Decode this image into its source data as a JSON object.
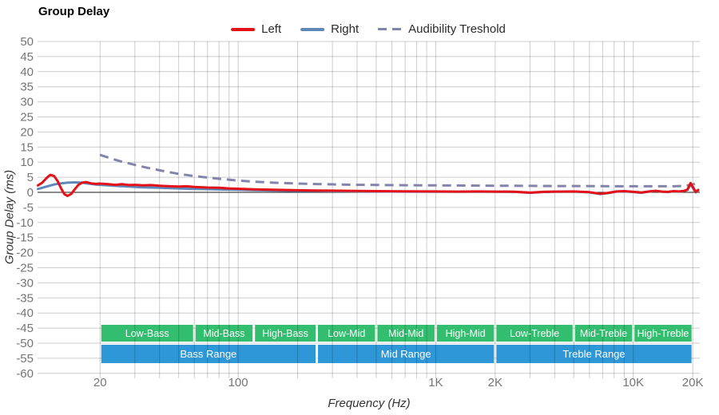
{
  "title": "Group Delay",
  "colors": {
    "left": "#e31219",
    "right": "#5f88ba",
    "threshold": "#8284ab",
    "grid": "#cccccc",
    "zero_line": "#1a1a1a",
    "tick_text": "#757575",
    "band_green": "#33bd6e",
    "band_blue": "#2e97d8",
    "band_text": "#ffffff"
  },
  "legend": [
    {
      "label": "Left",
      "color": "#e31219",
      "style": "solid"
    },
    {
      "label": "Right",
      "color": "#5f88ba",
      "style": "solid"
    },
    {
      "label": "Audibility Treshold",
      "color": "#8284ab",
      "style": "dashed"
    }
  ],
  "axes": {
    "y_label": "Group Delay (ms)",
    "x_label": "Frequency (Hz)",
    "y_ticks": [
      50,
      45,
      40,
      35,
      30,
      25,
      20,
      15,
      10,
      5,
      0,
      -5,
      -10,
      -15,
      -20,
      -25,
      -30,
      -35,
      -40,
      -45,
      -50,
      -55,
      -60
    ],
    "x_ticks": [
      {
        "f": 20,
        "label": "20"
      },
      {
        "f": 100,
        "label": "100"
      },
      {
        "f": 1000,
        "label": "1K"
      },
      {
        "f": 2000,
        "label": "2K"
      },
      {
        "f": 10000,
        "label": "10K"
      },
      {
        "f": 20000,
        "label": "20K"
      }
    ],
    "y_range": [
      -60,
      50
    ],
    "x_range_hz": [
      9.7,
      21700
    ]
  },
  "bands": {
    "sub": [
      {
        "label": "Low-Bass",
        "from": 20,
        "to": 60
      },
      {
        "label": "Mid-Bass",
        "from": 60,
        "to": 120
      },
      {
        "label": "High-Bass",
        "from": 120,
        "to": 250
      },
      {
        "label": "Low-Mid",
        "from": 250,
        "to": 500
      },
      {
        "label": "Mid-Mid",
        "from": 500,
        "to": 1000
      },
      {
        "label": "High-Mid",
        "from": 1000,
        "to": 2000
      },
      {
        "label": "Low-Treble",
        "from": 2000,
        "to": 5000
      },
      {
        "label": "Mid-Treble",
        "from": 5000,
        "to": 10000
      },
      {
        "label": "High-Treble",
        "from": 10000,
        "to": 20000
      }
    ],
    "main": [
      {
        "label": "Bass Range",
        "from": 20,
        "to": 250
      },
      {
        "label": "Mid Range",
        "from": 250,
        "to": 2000
      },
      {
        "label": "Treble Range",
        "from": 2000,
        "to": 20000
      }
    ]
  },
  "chart_data": {
    "type": "line",
    "title": "Group Delay",
    "xlabel": "Frequency (Hz)",
    "ylabel": "Group Delay (ms)",
    "x_scale": "log",
    "xlim": [
      9.7,
      21700
    ],
    "ylim": [
      -60,
      50
    ],
    "grid": true,
    "legend_position": "top-center",
    "series": [
      {
        "name": "Audibility Treshold",
        "color": "#8284ab",
        "dashed": true,
        "points": [
          [
            20,
            12.4
          ],
          [
            25,
            10.4
          ],
          [
            30,
            9.1
          ],
          [
            35,
            8.1
          ],
          [
            40,
            7.3
          ],
          [
            50,
            6.1
          ],
          [
            60,
            5.4
          ],
          [
            70,
            4.9
          ],
          [
            80,
            4.5
          ],
          [
            90,
            4.2
          ],
          [
            100,
            3.9
          ],
          [
            120,
            3.55
          ],
          [
            150,
            3.2
          ],
          [
            200,
            2.9
          ],
          [
            250,
            2.75
          ],
          [
            300,
            2.65
          ],
          [
            400,
            2.5
          ],
          [
            500,
            2.45
          ],
          [
            700,
            2.35
          ],
          [
            1000,
            2.3
          ],
          [
            1500,
            2.25
          ],
          [
            2000,
            2.2
          ],
          [
            3000,
            2.15
          ],
          [
            4000,
            2.1
          ],
          [
            5000,
            2.1
          ],
          [
            7000,
            2.05
          ],
          [
            10000,
            2.0
          ],
          [
            13000,
            2.0
          ],
          [
            16000,
            2.0
          ],
          [
            18000,
            2.1
          ],
          [
            19500,
            2.5
          ],
          [
            20500,
            2.8
          ]
        ]
      },
      {
        "name": "Right",
        "color": "#5f88ba",
        "dashed": false,
        "points": [
          [
            9.7,
            1.1
          ],
          [
            10.7,
            1.9
          ],
          [
            11.7,
            2.6
          ],
          [
            12.7,
            3.0
          ],
          [
            13.7,
            3.2
          ],
          [
            14.9,
            3.3
          ],
          [
            16.2,
            3.2
          ],
          [
            17,
            3.0
          ],
          [
            18,
            2.8
          ],
          [
            19,
            2.6
          ],
          [
            20,
            2.5
          ],
          [
            22,
            2.3
          ],
          [
            25,
            2.1
          ],
          [
            28,
            1.9
          ],
          [
            32,
            1.7
          ],
          [
            36,
            1.6
          ],
          [
            40,
            1.5
          ],
          [
            45,
            1.4
          ],
          [
            50,
            1.3
          ],
          [
            60,
            1.15
          ],
          [
            70,
            1.05
          ],
          [
            80,
            0.95
          ],
          [
            90,
            0.9
          ],
          [
            100,
            0.85
          ],
          [
            120,
            0.75
          ],
          [
            150,
            0.6
          ],
          [
            200,
            0.5
          ],
          [
            250,
            0.45
          ],
          [
            300,
            0.4
          ],
          [
            400,
            0.35
          ],
          [
            500,
            0.3
          ],
          [
            700,
            0.25
          ],
          [
            1000,
            0.2
          ],
          [
            1300,
            0.18
          ],
          [
            1600,
            0.22
          ],
          [
            2000,
            0.2
          ],
          [
            2500,
            0.15
          ],
          [
            3000,
            -0.15
          ],
          [
            3500,
            0.1
          ],
          [
            4000,
            0.2
          ],
          [
            5000,
            0.25
          ],
          [
            6000,
            0.0
          ],
          [
            6800,
            -0.55
          ],
          [
            7500,
            -0.25
          ],
          [
            8200,
            0.25
          ],
          [
            9000,
            0.35
          ],
          [
            10000,
            0.1
          ],
          [
            11000,
            -0.15
          ],
          [
            12000,
            0.25
          ],
          [
            13000,
            0.45
          ],
          [
            14000,
            0.2
          ],
          [
            15000,
            0.1
          ],
          [
            16000,
            0.35
          ],
          [
            17000,
            0.25
          ],
          [
            18000,
            0.4
          ],
          [
            18800,
            0.8
          ],
          [
            19500,
            2.7
          ],
          [
            20200,
            1.1
          ],
          [
            20700,
            0.0
          ],
          [
            21300,
            0.6
          ]
        ]
      },
      {
        "name": "Left",
        "color": "#e31219",
        "dashed": false,
        "points": [
          [
            9.7,
            2.3
          ],
          [
            10.2,
            3.2
          ],
          [
            10.7,
            4.7
          ],
          [
            11.2,
            5.8
          ],
          [
            11.7,
            5.4
          ],
          [
            12.2,
            3.7
          ],
          [
            12.7,
            1.3
          ],
          [
            13.2,
            -0.6
          ],
          [
            13.7,
            -1.2
          ],
          [
            14.3,
            -0.5
          ],
          [
            14.9,
            1.0
          ],
          [
            15.5,
            2.4
          ],
          [
            16.2,
            3.2
          ],
          [
            17,
            3.4
          ],
          [
            18,
            3.0
          ],
          [
            19,
            2.8
          ],
          [
            20,
            2.9
          ],
          [
            22,
            2.7
          ],
          [
            24,
            2.5
          ],
          [
            26,
            2.7
          ],
          [
            28,
            2.4
          ],
          [
            30,
            2.5
          ],
          [
            33,
            2.3
          ],
          [
            36,
            2.4
          ],
          [
            40,
            2.2
          ],
          [
            45,
            2.0
          ],
          [
            50,
            1.9
          ],
          [
            55,
            2.0
          ],
          [
            60,
            1.8
          ],
          [
            70,
            1.6
          ],
          [
            80,
            1.5
          ],
          [
            90,
            1.3
          ],
          [
            100,
            1.2
          ],
          [
            120,
            1.0
          ],
          [
            150,
            0.85
          ],
          [
            200,
            0.7
          ],
          [
            250,
            0.6
          ],
          [
            300,
            0.55
          ],
          [
            400,
            0.45
          ],
          [
            500,
            0.4
          ],
          [
            700,
            0.35
          ],
          [
            1000,
            0.3
          ],
          [
            1300,
            0.25
          ],
          [
            1600,
            0.3
          ],
          [
            2000,
            0.25
          ],
          [
            2500,
            0.2
          ],
          [
            3000,
            -0.1
          ],
          [
            3500,
            0.15
          ],
          [
            4000,
            0.25
          ],
          [
            5000,
            0.3
          ],
          [
            6000,
            0.05
          ],
          [
            6800,
            -0.45
          ],
          [
            7500,
            -0.15
          ],
          [
            8200,
            0.3
          ],
          [
            9000,
            0.4
          ],
          [
            10000,
            0.15
          ],
          [
            11000,
            -0.05
          ],
          [
            12000,
            0.3
          ],
          [
            13000,
            0.5
          ],
          [
            14000,
            0.25
          ],
          [
            15000,
            0.15
          ],
          [
            16000,
            0.4
          ],
          [
            17000,
            0.3
          ],
          [
            18000,
            0.45
          ],
          [
            18800,
            0.9
          ],
          [
            19500,
            3.1
          ],
          [
            20200,
            1.4
          ],
          [
            20700,
            0.1
          ],
          [
            21300,
            0.8
          ]
        ]
      }
    ]
  }
}
